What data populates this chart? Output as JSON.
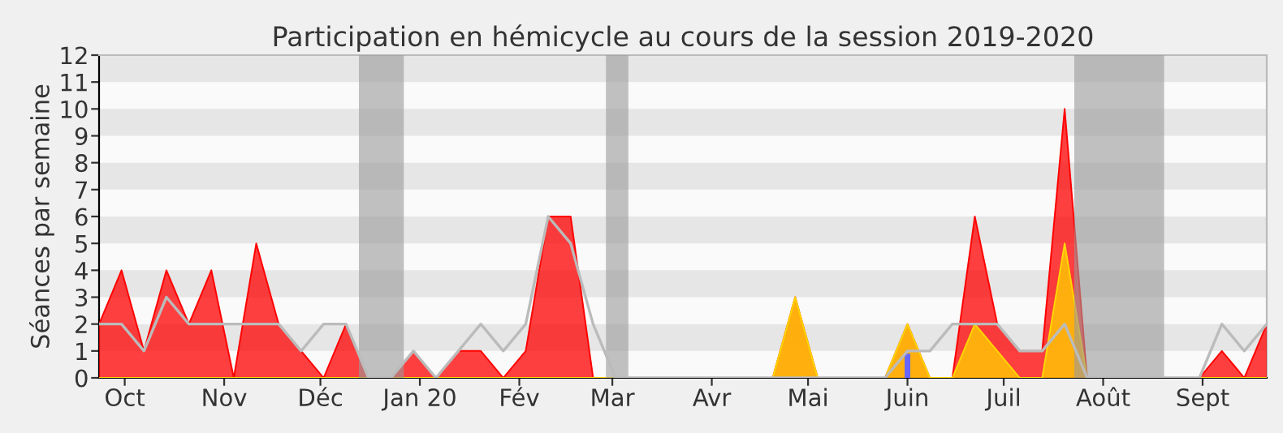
{
  "chart_data": {
    "type": "area",
    "title": "Participation en hémicycle au cours de la session 2019-2020",
    "ylabel": "Séances par semaine",
    "x": [
      "2019-09-23",
      "2019-09-30",
      "2019-10-07",
      "2019-10-14",
      "2019-10-21",
      "2019-10-28",
      "2019-11-04",
      "2019-11-11",
      "2019-11-18",
      "2019-11-25",
      "2019-12-02",
      "2019-12-09",
      "2019-12-16",
      "2019-12-23",
      "2019-12-30",
      "2020-01-06",
      "2020-01-13",
      "2020-01-20",
      "2020-01-27",
      "2020-02-03",
      "2020-02-10",
      "2020-02-17",
      "2020-02-24",
      "2020-03-02",
      "2020-03-09",
      "2020-03-16",
      "2020-03-23",
      "2020-03-30",
      "2020-04-06",
      "2020-04-13",
      "2020-04-20",
      "2020-04-27",
      "2020-05-04",
      "2020-05-11",
      "2020-05-18",
      "2020-05-25",
      "2020-06-01",
      "2020-06-08",
      "2020-06-15",
      "2020-06-22",
      "2020-06-29",
      "2020-07-06",
      "2020-07-13",
      "2020-07-20",
      "2020-07-27",
      "2020-08-03",
      "2020-08-10",
      "2020-08-17",
      "2020-08-24",
      "2020-08-31",
      "2020-09-07",
      "2020-09-14",
      "2020-09-21"
    ],
    "series": [
      {
        "type": "line",
        "color": "#bbbbbb",
        "values": [
          2,
          2,
          1,
          3,
          2,
          2,
          2,
          2,
          2,
          1,
          2,
          2,
          0,
          0,
          1,
          0,
          1,
          2,
          1,
          2,
          6,
          5,
          2,
          0,
          0,
          0,
          0,
          0,
          0,
          0,
          0,
          0,
          0,
          0,
          0,
          0,
          1,
          1,
          2,
          2,
          2,
          1,
          1,
          2,
          0,
          0,
          0,
          0,
          0,
          0,
          2,
          1,
          2
        ]
      },
      {
        "color": "#ff0000",
        "values": [
          2,
          4,
          1,
          4,
          2,
          4,
          0,
          5,
          2,
          1,
          0,
          2,
          0,
          0,
          1,
          0,
          1,
          1,
          0,
          1,
          6,
          6,
          0,
          0,
          0,
          0,
          0,
          0,
          0,
          0,
          0,
          3,
          0,
          0,
          0,
          0,
          2,
          0,
          0,
          6,
          2,
          1,
          1,
          10,
          0,
          0,
          0,
          0,
          0,
          0,
          1,
          0,
          2
        ]
      },
      {
        "color": "#ffd700",
        "values": [
          0,
          0,
          0,
          0,
          0,
          0,
          0,
          0,
          0,
          0,
          0,
          0,
          0,
          0,
          0,
          0,
          0,
          0,
          0,
          0,
          0,
          0,
          0,
          0,
          0,
          0,
          0,
          0,
          0,
          0,
          0,
          3,
          0,
          0,
          0,
          0,
          2,
          0,
          0,
          2,
          1,
          0,
          0,
          5,
          0,
          0,
          0,
          0,
          0,
          0,
          0,
          0,
          0
        ]
      },
      {
        "type": "bar",
        "color": "#6666ff",
        "values": [
          null,
          null,
          null,
          null,
          null,
          null,
          null,
          null,
          null,
          null,
          null,
          null,
          null,
          null,
          null,
          null,
          null,
          null,
          null,
          null,
          null,
          null,
          null,
          null,
          null,
          null,
          null,
          null,
          null,
          null,
          null,
          null,
          null,
          null,
          null,
          null,
          0.9,
          null,
          null,
          null,
          null,
          null,
          null,
          null,
          null,
          null,
          null,
          null,
          null,
          null,
          null,
          null,
          null
        ]
      }
    ],
    "xlim": [
      "2019-09-23",
      "2020-09-21"
    ],
    "xticks": [
      {
        "value": "2019-10-01",
        "label": "Oct"
      },
      {
        "value": "2019-11-01",
        "label": "Nov"
      },
      {
        "value": "2019-12-01",
        "label": "Déc"
      },
      {
        "value": "2020-01-01",
        "label": "Jan 20"
      },
      {
        "value": "2020-02-01",
        "label": "Fév"
      },
      {
        "value": "2020-03-01",
        "label": "Mar"
      },
      {
        "value": "2020-04-01",
        "label": "Avr"
      },
      {
        "value": "2020-05-01",
        "label": "Mai"
      },
      {
        "value": "2020-06-01",
        "label": "Juin"
      },
      {
        "value": "2020-07-01",
        "label": "Juil"
      },
      {
        "value": "2020-08-01",
        "label": "Août"
      },
      {
        "value": "2020-09-01",
        "label": "Sept"
      }
    ],
    "ylim": [
      0,
      12
    ],
    "yticks": [
      0,
      1,
      2,
      3,
      4,
      5,
      6,
      7,
      8,
      9,
      10,
      11,
      12
    ],
    "bands": [
      {
        "axis": "x",
        "from": "2019-12-13",
        "to": "2019-12-27",
        "color": "#999999"
      },
      {
        "axis": "x",
        "from": "2020-02-28",
        "to": "2020-03-06",
        "color": "#999999"
      },
      {
        "axis": "x",
        "from": "2020-07-23",
        "to": "2020-08-20",
        "color": "#999999"
      }
    ],
    "grid": false
  }
}
